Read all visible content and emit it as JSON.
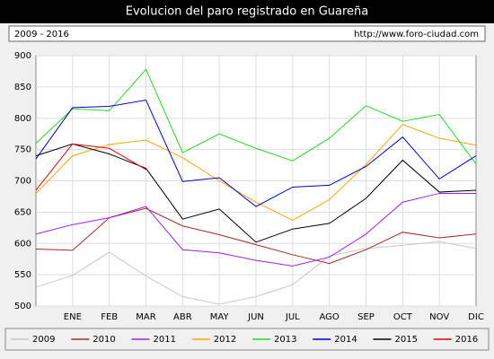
{
  "chart_data": {
    "type": "line",
    "title": "Evolucion del paro registrado en Guareña",
    "subtitle": "2009 - 2016",
    "source": "http://www.foro-ciudad.com",
    "categories": [
      null,
      "ENE",
      "FEB",
      "MAR",
      "ABR",
      "MAY",
      "JUN",
      "JUL",
      "AGO",
      "SEP",
      "OCT",
      "NOV",
      "DIC"
    ],
    "ylim": [
      500,
      900
    ],
    "yticks": [
      500,
      550,
      600,
      650,
      700,
      750,
      800,
      850,
      900
    ],
    "grid": true,
    "legend": "bottom",
    "series": [
      {
        "name": "2009",
        "color": "#c8c8c8",
        "values": [
          530,
          549,
          586,
          548,
          515,
          503,
          515,
          534,
          580,
          592,
          597,
          603,
          592
        ]
      },
      {
        "name": "2010",
        "color": "#a52a2a",
        "values": [
          591,
          589,
          641,
          656,
          628,
          614,
          598,
          582,
          568,
          590,
          618,
          609,
          615
        ]
      },
      {
        "name": "2011",
        "color": "#a020f0",
        "values": [
          615,
          630,
          641,
          659,
          590,
          585,
          573,
          564,
          578,
          615,
          666,
          680,
          680
        ]
      },
      {
        "name": "2012",
        "color": "#ffa500",
        "values": [
          680,
          740,
          758,
          765,
          737,
          700,
          666,
          637,
          670,
          726,
          790,
          768,
          757
        ]
      },
      {
        "name": "2013",
        "color": "#22dd22",
        "values": [
          760,
          815,
          812,
          878,
          745,
          775,
          752,
          732,
          768,
          820,
          795,
          806,
          727
        ]
      },
      {
        "name": "2014",
        "color": "#0000cc",
        "values": [
          735,
          817,
          819,
          829,
          699,
          705,
          659,
          690,
          693,
          723,
          770,
          703,
          740
        ]
      },
      {
        "name": "2015",
        "color": "#000000",
        "values": [
          740,
          759,
          743,
          720,
          639,
          655,
          602,
          623,
          632,
          672,
          733,
          682,
          685
        ]
      },
      {
        "name": "2016",
        "color": "#dd0000",
        "values": [
          685,
          759,
          752,
          718,
          null,
          null,
          null,
          null,
          null,
          null,
          null,
          null,
          null
        ]
      }
    ]
  }
}
